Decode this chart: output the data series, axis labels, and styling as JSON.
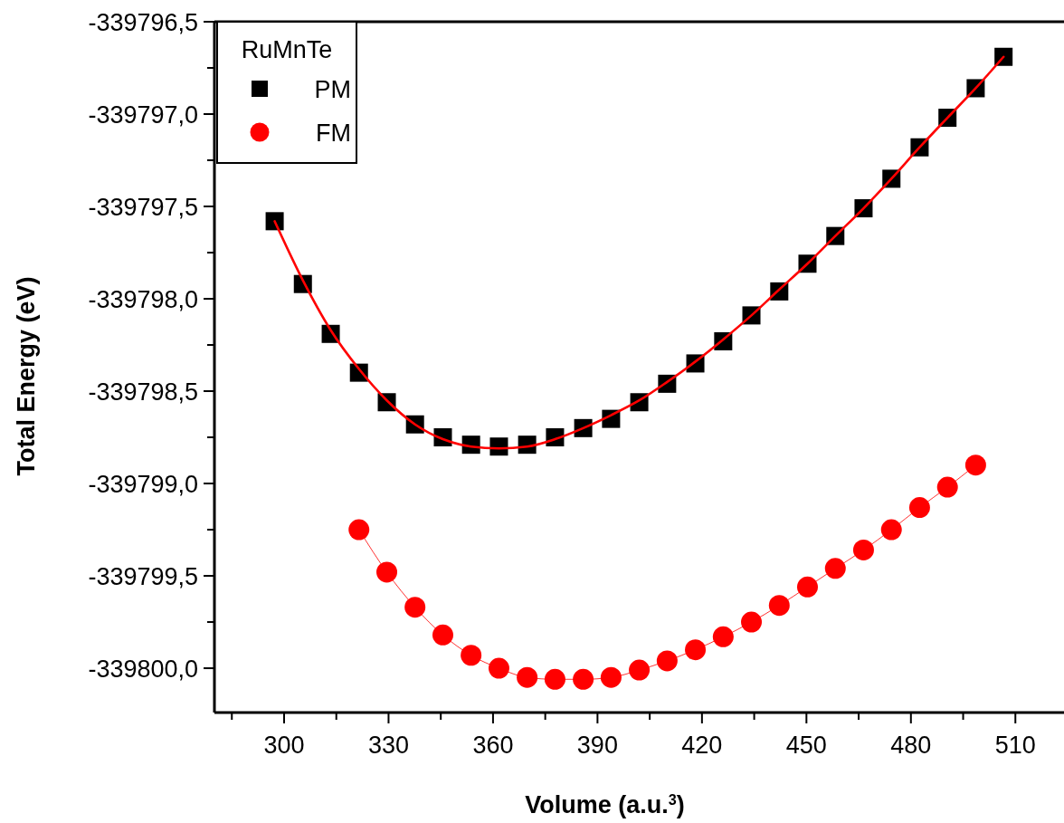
{
  "chart_data": {
    "type": "scatter",
    "xlabel": "Volume (a.u.$^{3}$)",
    "ylabel": "Total Energy (eV)",
    "legend_title": "RuMnTe",
    "legend": "top left",
    "grid": false,
    "xlim": [
      280,
      525
    ],
    "ylim": [
      -339800.24,
      -339796.5
    ],
    "xticks": [
      {
        "value": 285,
        "label": null
      },
      300,
      {
        "value": 315,
        "label": null
      },
      330,
      {
        "value": 345,
        "label": null
      },
      360,
      {
        "value": 375,
        "label": null
      },
      390,
      {
        "value": 405,
        "label": null
      },
      420,
      {
        "value": 435,
        "label": null
      },
      450,
      {
        "value": 465,
        "label": null
      },
      480,
      {
        "value": 495,
        "label": null
      },
      510
    ],
    "yticks": [
      {
        "value": -339800,
        "label": "-339800,0"
      },
      {
        "value": -339799.75,
        "label": null
      },
      {
        "value": -339799.5,
        "label": "-339799,5"
      },
      {
        "value": -339799.25,
        "label": null
      },
      {
        "value": -339799,
        "label": "-339799,0"
      },
      {
        "value": -339798.75,
        "label": null
      },
      {
        "value": -339798.5,
        "label": "-339798,5"
      },
      {
        "value": -339798.25,
        "label": null
      },
      {
        "value": -339798,
        "label": "-339798,0"
      },
      {
        "value": -339797.75,
        "label": null
      },
      {
        "value": -339797.5,
        "label": "-339797,5"
      },
      {
        "value": -339797.25,
        "label": null
      },
      {
        "value": -339797,
        "label": "-339797,0"
      },
      {
        "value": -339796.75,
        "label": null
      },
      {
        "value": -339796.5,
        "label": "-339796,5"
      }
    ],
    "series": [
      {
        "name": "PM",
        "marker": "square",
        "color": "#000000",
        "x": [
          297.3,
          305.4,
          313.4,
          321.5,
          329.5,
          337.6,
          345.6,
          353.7,
          361.7,
          369.8,
          377.8,
          385.9,
          393.9,
          402.0,
          410.0,
          418.1,
          426.1,
          434.2,
          442.2,
          450.3,
          458.3,
          466.4,
          474.4,
          482.5,
          490.5,
          498.6,
          506.6
        ],
        "values": [
          -339797.58,
          -339797.92,
          -339798.19,
          -339798.4,
          -339798.56,
          -339798.68,
          -339798.75,
          -339798.79,
          -339798.8,
          -339798.79,
          -339798.75,
          -339798.7,
          -339798.65,
          -339798.56,
          -339798.46,
          -339798.35,
          -339798.23,
          -339798.09,
          -339797.96,
          -339797.81,
          -339797.66,
          -339797.51,
          -339797.35,
          -339797.18,
          -339797.02,
          -339796.86,
          -339796.69
        ]
      },
      {
        "type": "line",
        "marker": "none",
        "color": "#ff0000",
        "x": [
          297.3,
          305.4,
          313.4,
          321.5,
          329.5,
          337.6,
          345.6,
          353.7,
          361.7,
          369.8,
          377.8,
          385.9,
          393.9,
          402.0,
          410.0,
          418.1,
          426.1,
          434.2,
          442.2,
          450.3,
          458.3,
          466.4,
          474.4,
          482.5,
          490.5,
          498.6,
          506.6
        ],
        "values": [
          -339797.58,
          -339797.9,
          -339798.17,
          -339798.38,
          -339798.55,
          -339798.68,
          -339798.76,
          -339798.8,
          -339798.81,
          -339798.8,
          -339798.76,
          -339798.7,
          -339798.63,
          -339798.55,
          -339798.45,
          -339798.34,
          -339798.22,
          -339798.09,
          -339797.95,
          -339797.81,
          -339797.66,
          -339797.51,
          -339797.35,
          -339797.18,
          -339797.02,
          -339796.86,
          -339796.69
        ]
      },
      {
        "name": "FM",
        "type": "line",
        "marker": "circle",
        "color": "#ff0000",
        "x": [
          321.5,
          329.5,
          337.6,
          345.6,
          353.7,
          361.7,
          369.8,
          377.8,
          385.9,
          393.9,
          402.0,
          410.0,
          418.1,
          426.1,
          434.2,
          442.2,
          450.3,
          458.3,
          466.4,
          474.4,
          482.5,
          490.5,
          498.6
        ],
        "values": [
          -339799.25,
          -339799.48,
          -339799.67,
          -339799.82,
          -339799.93,
          -339800.0,
          -339800.05,
          -339800.06,
          -339800.06,
          -339800.05,
          -339800.01,
          -339799.96,
          -339799.9,
          -339799.83,
          -339799.75,
          -339799.66,
          -339799.56,
          -339799.46,
          -339799.36,
          -339799.25,
          -339799.13,
          -339799.02,
          -339798.9
        ]
      }
    ]
  }
}
